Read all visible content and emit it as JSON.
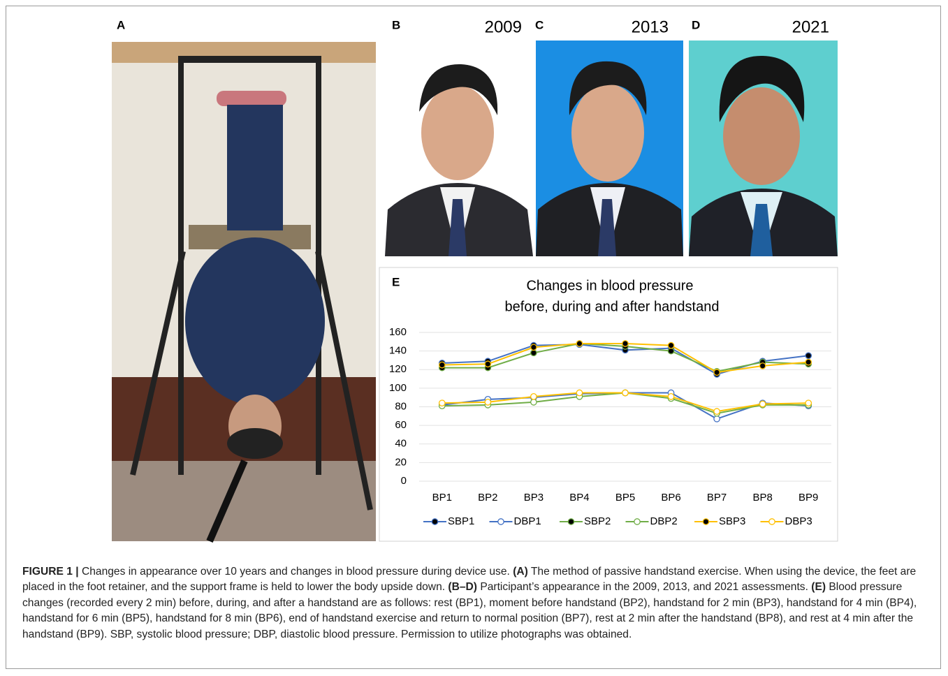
{
  "panels": {
    "A": "A",
    "B": "B",
    "C": "C",
    "D": "D",
    "E": "E"
  },
  "years": {
    "B": "2009",
    "C": "2013",
    "D": "2021"
  },
  "chart_data": {
    "type": "line",
    "title": [
      "Changes in blood pressure",
      "before, during and after handstand"
    ],
    "categories": [
      "BP1",
      "BP2",
      "BP3",
      "BP4",
      "BP5",
      "BP6",
      "BP7",
      "BP8",
      "BP9"
    ],
    "ylim": [
      0,
      160
    ],
    "yticks": [
      0,
      20,
      40,
      60,
      80,
      100,
      120,
      140,
      160
    ],
    "grid": true,
    "series": [
      {
        "name": "SBP1",
        "color": "#4472c4",
        "marker": "filled",
        "values": [
          127,
          129,
          146,
          147,
          141,
          143,
          115,
          129,
          135
        ]
      },
      {
        "name": "DBP1",
        "color": "#4472c4",
        "marker": "open",
        "values": [
          82,
          88,
          90,
          94,
          95,
          95,
          67,
          84,
          81
        ]
      },
      {
        "name": "SBP2",
        "color": "#70ad47",
        "marker": "filled",
        "values": [
          122,
          122,
          138,
          148,
          145,
          140,
          118,
          128,
          126
        ]
      },
      {
        "name": "DBP2",
        "color": "#70ad47",
        "marker": "open",
        "values": [
          81,
          82,
          85,
          91,
          95,
          89,
          73,
          82,
          82
        ]
      },
      {
        "name": "SBP3",
        "color": "#ffc000",
        "marker": "filled",
        "values": [
          125,
          126,
          144,
          148,
          148,
          146,
          117,
          124,
          128
        ]
      },
      {
        "name": "DBP3",
        "color": "#ffc000",
        "marker": "open",
        "values": [
          84,
          85,
          91,
          95,
          95,
          91,
          75,
          83,
          84
        ]
      }
    ]
  },
  "caption": [
    {
      "text": "FIGURE 1 |",
      "bold": true
    },
    {
      "text": " Changes in appearance over 10 years and changes in blood pressure during device use. ",
      "bold": false
    },
    {
      "text": "(A)",
      "bold": true
    },
    {
      "text": " The method of passive handstand exercise. When using the device, the feet are placed in the foot retainer, and the support frame is held to lower the body upside down. ",
      "bold": false
    },
    {
      "text": "(B–D)",
      "bold": true
    },
    {
      "text": " Participant’s appearance in the 2009, 2013, and 2021 assessments. ",
      "bold": false
    },
    {
      "text": "(E)",
      "bold": true
    },
    {
      "text": " Blood pressure changes (recorded every 2 min) before, during, and after a handstand are as follows: rest (BP1), moment before handstand (BP2), handstand for 2 min (BP3), handstand for 4 min (BP4), handstand for 6 min (BP5), handstand for 8 min (BP6), end of handstand exercise and return to normal position (BP7), rest at 2 min after the handstand (BP8), and rest at 4 min after the handstand (BP9). SBP, systolic blood pressure; DBP, diastolic blood pressure. Permission to utilize photographs was obtained.",
      "bold": false
    }
  ]
}
